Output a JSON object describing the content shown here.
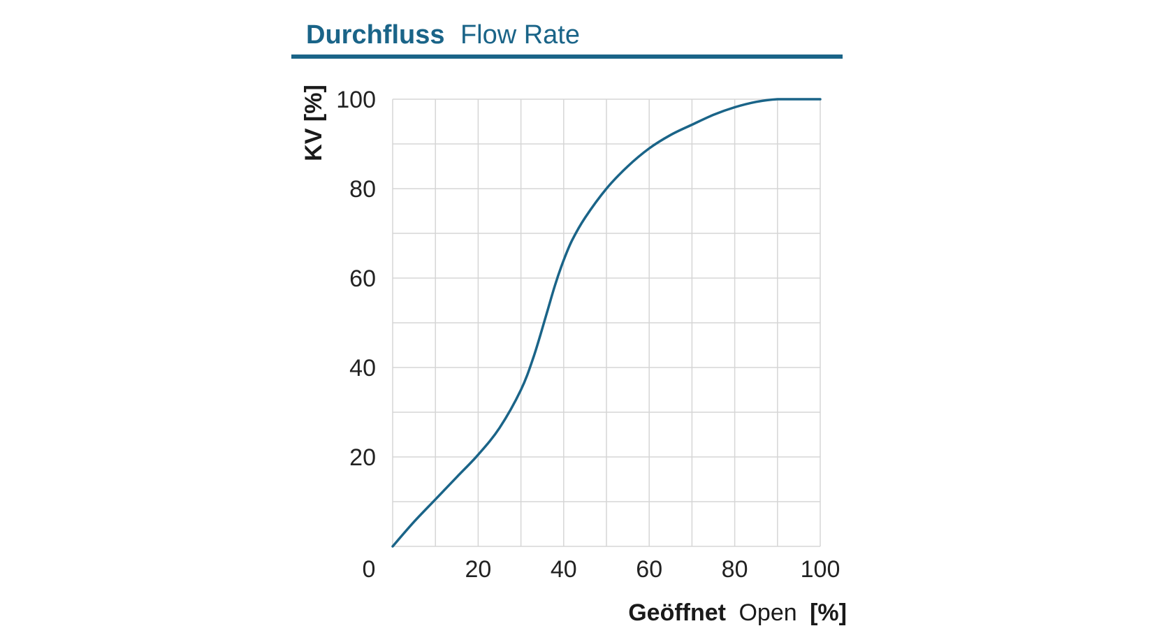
{
  "colors": {
    "accent": "#1a6488",
    "grid": "#d6d6d6",
    "text": "#1a1a1a"
  },
  "chart_data": {
    "type": "line",
    "title": "Durchfluss",
    "subtitle": "Flow Rate",
    "xlabel_de": "Geöffnet",
    "xlabel_en": "Open",
    "xlabel_unit": "[%]",
    "ylabel": "KV [%]",
    "xlim": [
      0,
      100
    ],
    "ylim": [
      0,
      100
    ],
    "x_ticks": [
      "0",
      "20",
      "40",
      "60",
      "80",
      "100"
    ],
    "y_ticks": [
      "20",
      "40",
      "60",
      "80",
      "100"
    ],
    "grid": true,
    "series": [
      {
        "x": [
          0,
          5,
          10,
          15,
          20,
          25,
          30,
          33,
          36,
          38,
          40,
          42,
          45,
          50,
          55,
          60,
          65,
          70,
          75,
          80,
          85,
          90,
          95,
          100
        ],
        "y": [
          0,
          5.5,
          10.5,
          15.5,
          20.5,
          26.5,
          35,
          42.5,
          52,
          58.5,
          64,
          68.5,
          73.5,
          80,
          85,
          89,
          92,
          94.3,
          96.5,
          98.2,
          99.4,
          100,
          100,
          100
        ]
      }
    ]
  }
}
